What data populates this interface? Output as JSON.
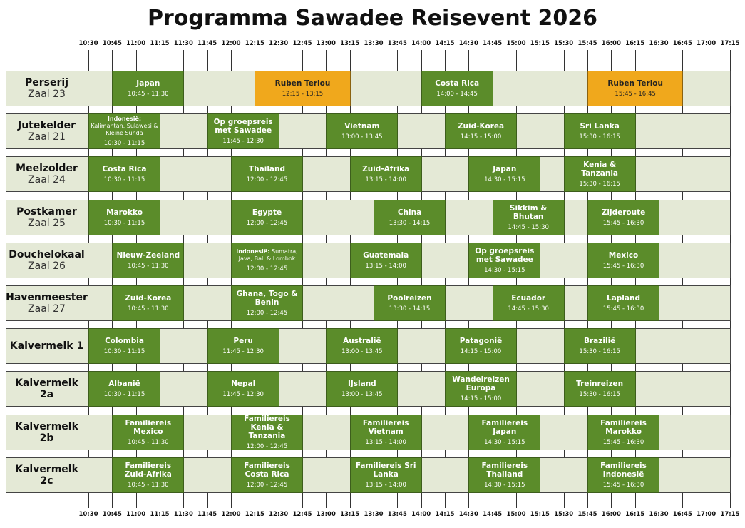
{
  "title": "Programma Sawadee Reisevent 2026",
  "times": [
    "10:30",
    "10:45",
    "11:00",
    "11:15",
    "11:30",
    "11:45",
    "12:00",
    "12:15",
    "12:30",
    "12:45",
    "13:00",
    "13:15",
    "13:30",
    "13:45",
    "14:00",
    "14:15",
    "14:30",
    "14:45",
    "15:00",
    "15:15",
    "15:30",
    "15:45",
    "16:00",
    "16:15",
    "16:30",
    "16:45",
    "17:00",
    "17:15"
  ],
  "rooms": [
    {
      "name": [
        "Perserij"
      ],
      "zaal": "Zaal 23",
      "sessions": [
        {
          "title": "Japan",
          "time": "10:45 - 11:30"
        },
        {
          "title": "Ruben Terlou",
          "time": "12:15 - 13:15",
          "featured": true
        },
        {
          "title": "Costa Rica",
          "time": "14:00 - 14:45"
        },
        {
          "title": "Ruben Terlou",
          "time": "15:45 - 16:45",
          "featured": true
        }
      ]
    },
    {
      "name": [
        "Jutekelder"
      ],
      "zaal": "Zaal 21",
      "sessions": [
        {
          "title_bold": "Indonesië:",
          "title": "Kalimantan, Sulawesi & Kleine Sunda",
          "time": "10:30 - 11:15"
        },
        {
          "title": "Op groepsreis met Sawadee",
          "time": "11:45 - 12:30"
        },
        {
          "title": "Vietnam",
          "time": "13:00 - 13:45"
        },
        {
          "title": "Zuid-Korea",
          "time": "14:15 - 15:00"
        },
        {
          "title": "Sri Lanka",
          "time": "15:30 - 16:15"
        }
      ]
    },
    {
      "name": [
        "Meelzolder"
      ],
      "zaal": "Zaal 24",
      "sessions": [
        {
          "title": "Costa Rica",
          "time": "10:30 - 11:15"
        },
        {
          "title": "Thailand",
          "time": "12:00 - 12:45"
        },
        {
          "title": "Zuid-Afrika",
          "time": "13:15 - 14:00"
        },
        {
          "title": "Japan",
          "time": "14:30 - 15:15"
        },
        {
          "title": "Kenia & Tanzania",
          "time": "15:30 - 16:15"
        }
      ]
    },
    {
      "name": [
        "Postkamer"
      ],
      "zaal": "Zaal 25",
      "sessions": [
        {
          "title": "Marokko",
          "time": "10:30 - 11:15"
        },
        {
          "title": "Egypte",
          "time": "12:00 - 12:45"
        },
        {
          "title": "China",
          "time": "13:30 - 14:15"
        },
        {
          "title": "Sikkim & Bhutan",
          "time": "14:45 - 15:30"
        },
        {
          "title": "Zijderoute",
          "time": "15:45 - 16:30"
        }
      ]
    },
    {
      "name": [
        "Douchelokaal"
      ],
      "zaal": "Zaal 26",
      "sessions": [
        {
          "title": "Nieuw-Zeeland",
          "time": "10:45 - 11:30"
        },
        {
          "title_bold": "Indonesië:",
          "title": "Sumatra, Java, Bali & Lombok",
          "time": "12:00 - 12:45"
        },
        {
          "title": "Guatemala",
          "time": "13:15 - 14:00"
        },
        {
          "title": "Op groepsreis met Sawadee",
          "time": "14:30 - 15:15"
        },
        {
          "title": "Mexico",
          "time": "15:45 - 16:30"
        }
      ]
    },
    {
      "name": [
        "Havenmeester"
      ],
      "zaal": "Zaal 27",
      "sessions": [
        {
          "title": "Zuid-Korea",
          "time": "10:45 - 11:30"
        },
        {
          "title": "Ghana, Togo & Benin",
          "time": "12:00 - 12:45"
        },
        {
          "title": "Poolreizen",
          "time": "13:30 - 14:15"
        },
        {
          "title": "Ecuador",
          "time": "14:45 - 15:30"
        },
        {
          "title": "Lapland",
          "time": "15:45 - 16:30"
        }
      ]
    },
    {
      "name": [
        "Kalvermelk 1"
      ],
      "sessions": [
        {
          "title": "Colombia",
          "time": "10:30 - 11:15"
        },
        {
          "title": "Peru",
          "time": "11:45 - 12:30"
        },
        {
          "title": "Australië",
          "time": "13:00 - 13:45"
        },
        {
          "title": "Patagonië",
          "time": "14:15 - 15:00"
        },
        {
          "title": "Brazilië",
          "time": "15:30 - 16:15"
        }
      ]
    },
    {
      "name": [
        "Kalvermelk",
        "2a"
      ],
      "sessions": [
        {
          "title": "Albanië",
          "time": "10:30 - 11:15"
        },
        {
          "title": "Nepal",
          "time": "11:45 - 12:30"
        },
        {
          "title": "IJsland",
          "time": "13:00 - 13:45"
        },
        {
          "title": "Wandelreizen Europa",
          "time": "14:15 - 15:00"
        },
        {
          "title": "Treinreizen",
          "time": "15:30 - 16:15"
        }
      ]
    },
    {
      "name": [
        "Kalvermelk",
        "2b"
      ],
      "sessions": [
        {
          "title": "Familiereis Mexico",
          "time": "10:45 - 11:30"
        },
        {
          "title": "Familiereis Kenia & Tanzania",
          "time": "12:00 - 12:45"
        },
        {
          "title": "Familiereis Vietnam",
          "time": "13:15 - 14:00"
        },
        {
          "title": "Familiereis Japan",
          "time": "14:30 - 15:15"
        },
        {
          "title": "Familiereis Marokko",
          "time": "15:45 - 16:30"
        }
      ]
    },
    {
      "name": [
        "Kalvermelk",
        "2c"
      ],
      "sessions": [
        {
          "title": "Familiereis Zuid-Afrika",
          "time": "10:45 - 11:30"
        },
        {
          "title": "Familiereis Costa Rica",
          "time": "12:00 - 12:45"
        },
        {
          "title": "Familiereis Sri Lanka",
          "time": "13:15 - 14:00"
        },
        {
          "title": "Familiereis Thailand",
          "time": "14:30 - 15:15"
        },
        {
          "title": "Familiereis Indonesië",
          "time": "15:45 - 16:30"
        }
      ]
    }
  ]
}
